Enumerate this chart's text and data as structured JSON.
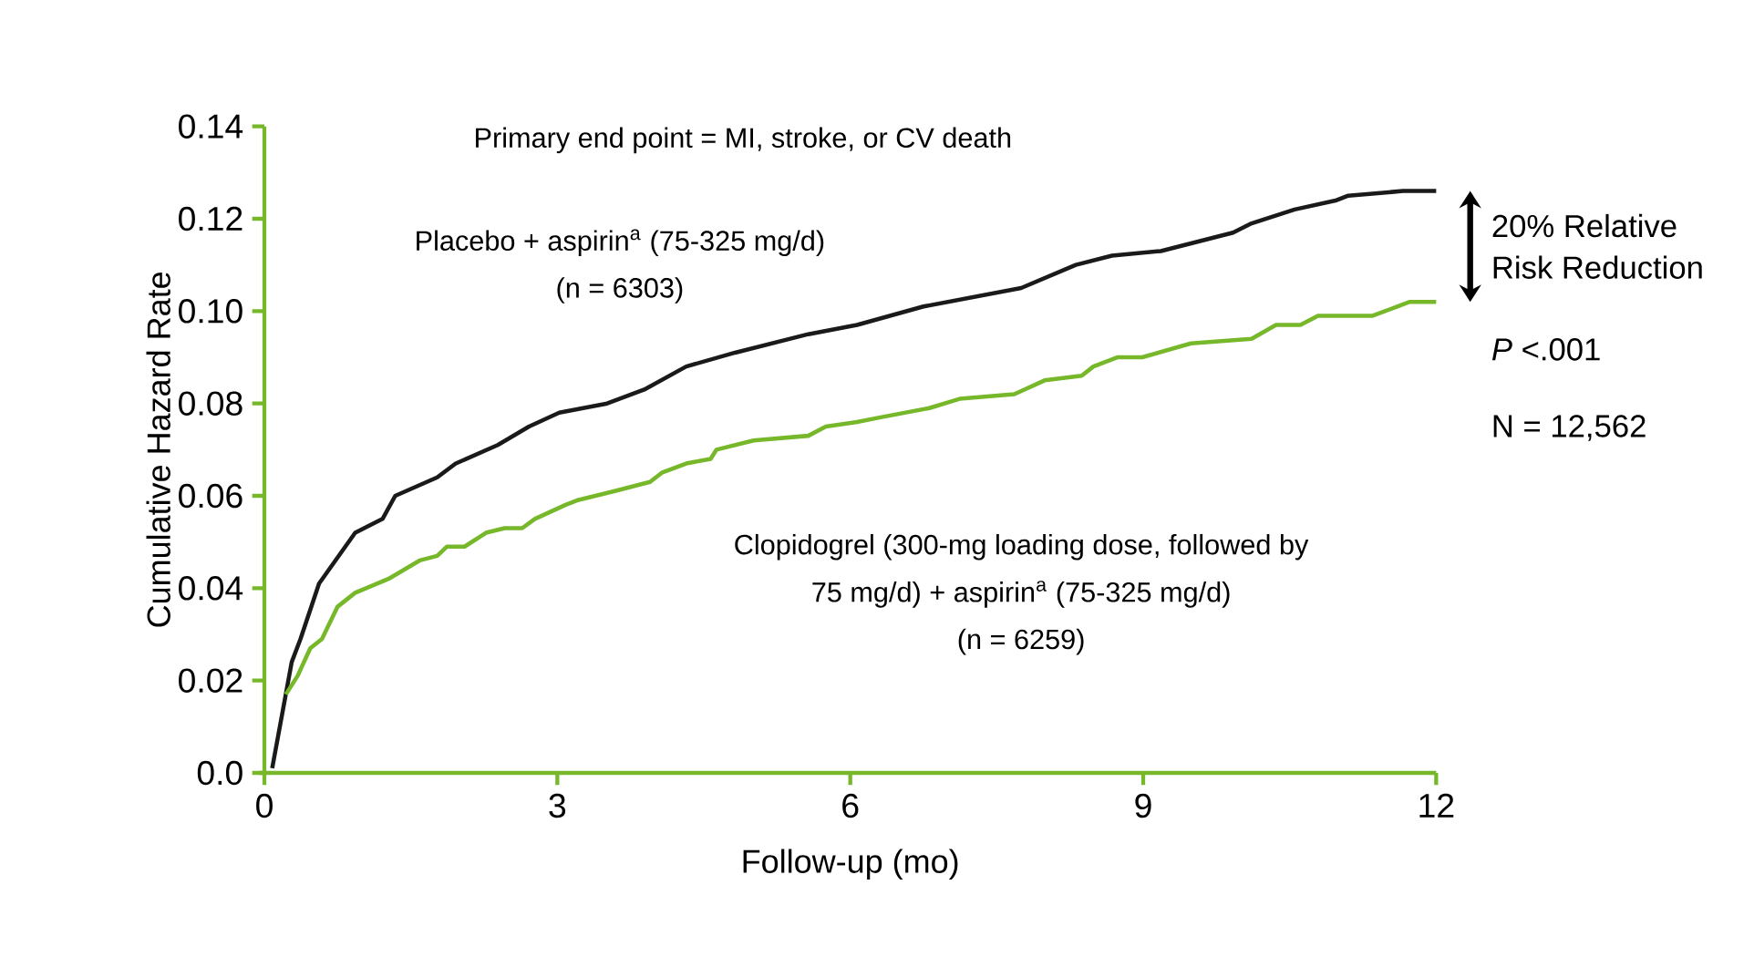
{
  "chart_data": {
    "type": "line",
    "xlabel": "Follow-up (mo)",
    "ylabel": "Cumulative Hazard Rate",
    "xlim": [
      0,
      12
    ],
    "ylim": [
      0,
      0.14
    ],
    "xticks": [
      0,
      3,
      6,
      9,
      12
    ],
    "yticks": [
      {
        "value": 0,
        "label": "0.0"
      },
      {
        "value": 0.02,
        "label": "0.02"
      },
      {
        "value": 0.04,
        "label": "0.04"
      },
      {
        "value": 0.06,
        "label": "0.06"
      },
      {
        "value": 0.08,
        "label": "0.08"
      },
      {
        "value": 0.1,
        "label": "0.10"
      },
      {
        "value": 0.12,
        "label": "0.12"
      },
      {
        "value": 0.14,
        "label": "0.14"
      }
    ],
    "marker": "none",
    "line_style": "solid",
    "legend": false,
    "grid": false,
    "series": [
      {
        "color": "#1a1a1a",
        "x": [
          0.08,
          0.28,
          0.37,
          0.56,
          0.93,
          1.21,
          1.34,
          1.77,
          1.96,
          2.39,
          2.71,
          3.02,
          3.51,
          3.89,
          4.32,
          4.82,
          5.57,
          6.07,
          6.75,
          7.75,
          8.31,
          8.68,
          9.18,
          9.92,
          10.11,
          10.55,
          10.98,
          11.1,
          11.66,
          12.0
        ],
        "values": [
          0.001,
          0.024,
          0.029,
          0.041,
          0.052,
          0.055,
          0.06,
          0.064,
          0.067,
          0.071,
          0.075,
          0.078,
          0.08,
          0.083,
          0.088,
          0.091,
          0.095,
          0.097,
          0.101,
          0.105,
          0.11,
          0.112,
          0.113,
          0.117,
          0.119,
          0.122,
          0.124,
          0.125,
          0.126,
          0.126
        ]
      },
      {
        "color": "#76b82a",
        "x": [
          0.22,
          0.34,
          0.47,
          0.59,
          0.75,
          0.93,
          1.27,
          1.59,
          1.77,
          1.87,
          2.05,
          2.27,
          2.46,
          2.64,
          2.77,
          3.08,
          3.2,
          3.58,
          3.95,
          4.07,
          4.32,
          4.57,
          4.63,
          5.01,
          5.57,
          5.75,
          6.07,
          6.31,
          6.81,
          7.12,
          7.68,
          7.99,
          8.37,
          8.49,
          8.74,
          8.99,
          9.49,
          10.11,
          10.36,
          10.61,
          10.79,
          11.35,
          11.73,
          12.0
        ],
        "values": [
          0.017,
          0.021,
          0.027,
          0.029,
          0.036,
          0.039,
          0.042,
          0.046,
          0.047,
          0.049,
          0.049,
          0.052,
          0.053,
          0.053,
          0.055,
          0.058,
          0.059,
          0.061,
          0.063,
          0.065,
          0.067,
          0.068,
          0.07,
          0.072,
          0.073,
          0.075,
          0.076,
          0.077,
          0.079,
          0.081,
          0.082,
          0.085,
          0.086,
          0.088,
          0.09,
          0.09,
          0.093,
          0.094,
          0.097,
          0.097,
          0.099,
          0.099,
          0.102,
          0.102
        ]
      }
    ],
    "annotations": [
      "Primary end point = MI, stroke, or CV death",
      "Placebo + aspirin$^{a}$ (75-325 mg/d)",
      "(n = 6303)",
      "Clopidogrel (300-mg loading dose, followed by",
      "75 mg/d) + aspirin$^{a}$ (75-325 mg/d)",
      "(n = 6259)",
      "20% Relative",
      "Risk Reduction",
      "*P* <.001",
      "N = 12,562"
    ]
  }
}
